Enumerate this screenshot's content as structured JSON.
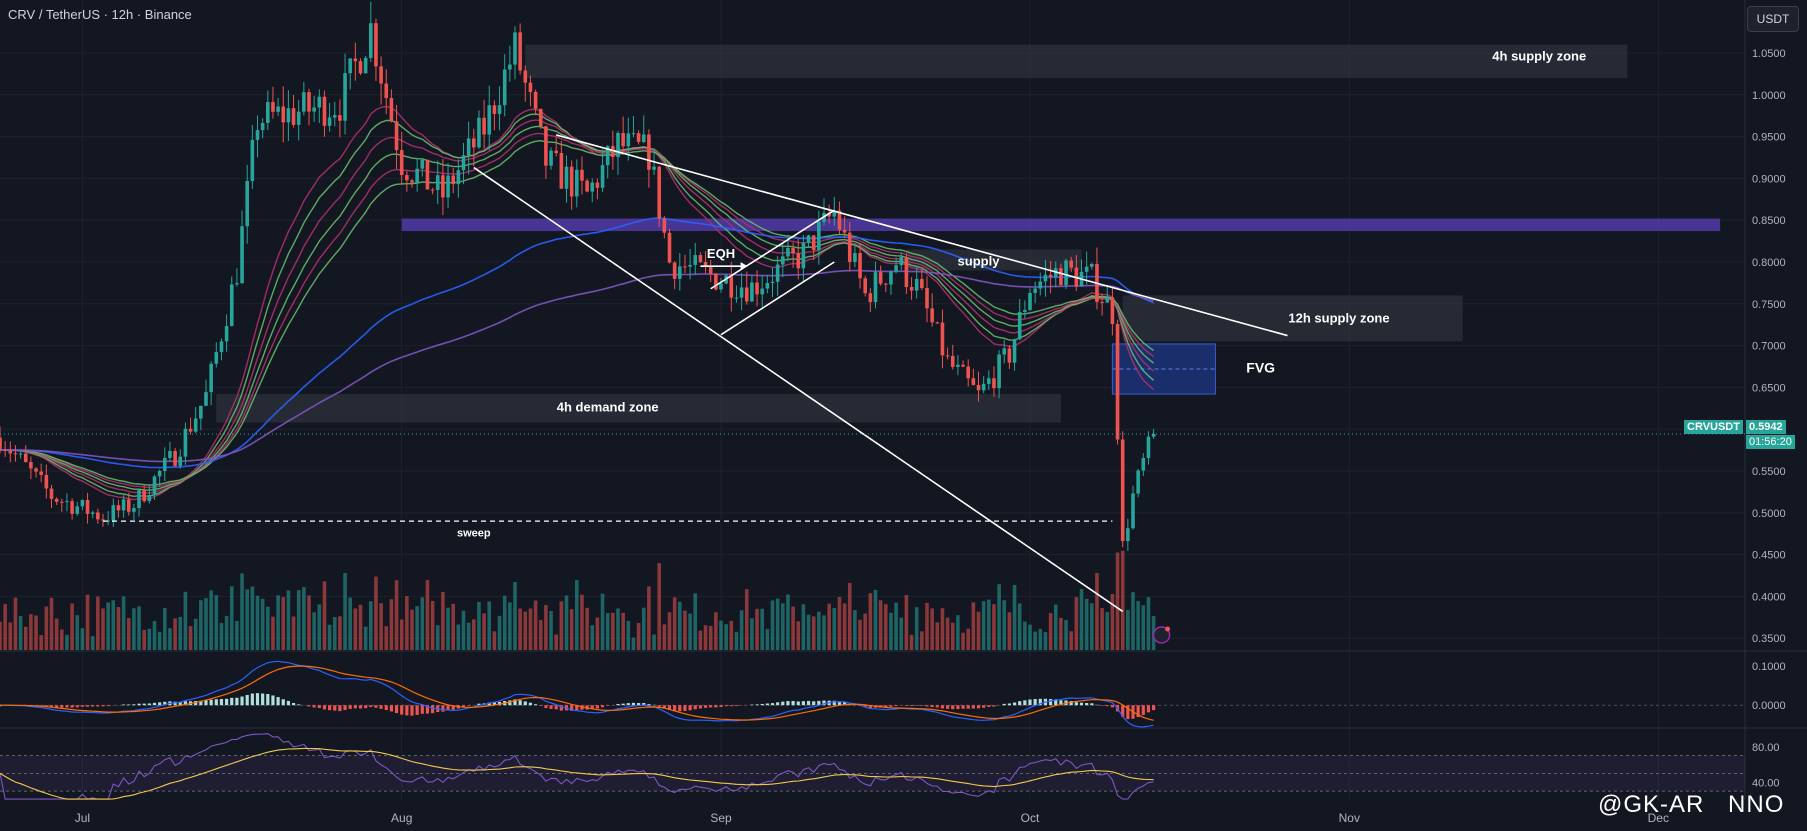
{
  "header": {
    "title": "CRV / TetherUS · 12h · Binance"
  },
  "currency_button": "USDT",
  "price_tag": {
    "symbol": "CRVUSDT",
    "price": "0.5942",
    "countdown": "01:56:20"
  },
  "watermark": {
    "brand": "@GK-AR",
    "suffix": "NNO"
  },
  "colors": {
    "background": "#131722",
    "bull": "#26a69a",
    "bear": "#ef5350",
    "grid": "#1e222d",
    "zone": "#363a45",
    "purple_zone": "#5b3fb8",
    "fvg": "#1f3a93"
  },
  "chart_data": {
    "type": "candlestick",
    "symbol": "CRV / TetherUS",
    "interval": "12h",
    "exchange": "Binance",
    "ylim": [
      0.33,
      1.09
    ],
    "y_ticks": [
      "1.0500",
      "1.0000",
      "0.9500",
      "0.9000",
      "0.8500",
      "0.8000",
      "0.7500",
      "0.7000",
      "0.6500",
      "0.6000",
      "0.5500",
      "0.5000",
      "0.4500",
      "0.4000",
      "0.3500"
    ],
    "x_ticks": [
      {
        "label": "Jul",
        "date": "2024-07-01"
      },
      {
        "label": "Aug",
        "date": "2024-08-01"
      },
      {
        "label": "Sep",
        "date": "2024-09-01"
      },
      {
        "label": "Oct",
        "date": "2024-10-01"
      },
      {
        "label": "Nov",
        "date": "2024-11-01"
      },
      {
        "label": "Dec",
        "date": "2024-12-01"
      }
    ],
    "price_path": [
      [
        "2024-06-23",
        0.59
      ],
      [
        "2024-06-28",
        0.52
      ],
      [
        "2024-07-03",
        0.495
      ],
      [
        "2024-07-06",
        0.51
      ],
      [
        "2024-07-10",
        0.57
      ],
      [
        "2024-07-13",
        0.64
      ],
      [
        "2024-07-16",
        0.79
      ],
      [
        "2024-07-18",
        0.97
      ],
      [
        "2024-07-22",
        0.98
      ],
      [
        "2024-07-26",
        0.99
      ],
      [
        "2024-07-29",
        1.08
      ],
      [
        "2024-08-01",
        0.92
      ],
      [
        "2024-08-05",
        0.88
      ],
      [
        "2024-08-09",
        0.96
      ],
      [
        "2024-08-12",
        1.055
      ],
      [
        "2024-08-15",
        0.92
      ],
      [
        "2024-08-19",
        0.88
      ],
      [
        "2024-08-22",
        0.94
      ],
      [
        "2024-08-25",
        0.93
      ],
      [
        "2024-08-27",
        0.8
      ],
      [
        "2024-09-01",
        0.78
      ],
      [
        "2024-09-04",
        0.77
      ],
      [
        "2024-09-09",
        0.81
      ],
      [
        "2024-09-12",
        0.86
      ],
      [
        "2024-09-15",
        0.76
      ],
      [
        "2024-09-18",
        0.8
      ],
      [
        "2024-09-20",
        0.77
      ],
      [
        "2024-09-23",
        0.68
      ],
      [
        "2024-09-26",
        0.64
      ],
      [
        "2024-09-29",
        0.69
      ],
      [
        "2024-10-01",
        0.77
      ],
      [
        "2024-10-04",
        0.79
      ],
      [
        "2024-10-07",
        0.78
      ],
      [
        "2024-10-09",
        0.74
      ],
      [
        "2024-10-10",
        0.46
      ],
      [
        "2024-10-11",
        0.52
      ],
      [
        "2024-10-12",
        0.56
      ],
      [
        "2024-10-13",
        0.594
      ]
    ],
    "annotations": [
      {
        "type": "zone",
        "label": "4h supply zone",
        "from": "2024-08-13",
        "to": "2024-11-28",
        "price_low": 1.02,
        "price_high": 1.06
      },
      {
        "type": "zone",
        "label": "",
        "from": "2024-08-01",
        "to": "2024-12-07",
        "price_low": 0.837,
        "price_high": 0.852,
        "color": "purple"
      },
      {
        "type": "zone",
        "label": "supply",
        "from": "2024-09-19",
        "to": "2024-10-06",
        "price_low": 0.79,
        "price_high": 0.815
      },
      {
        "type": "zone",
        "label": "12h supply zone",
        "from": "2024-10-10",
        "to": "2024-11-12",
        "price_low": 0.705,
        "price_high": 0.76
      },
      {
        "type": "zone",
        "label": "FVG",
        "from": "2024-10-09",
        "to": "2024-10-19",
        "price_low": 0.642,
        "price_high": 0.702,
        "color": "blue"
      },
      {
        "type": "zone",
        "label": "4h demand zone",
        "from": "2024-07-14",
        "to": "2024-10-04",
        "price_low": 0.608,
        "price_high": 0.642
      },
      {
        "type": "line",
        "label": "sweep",
        "from": "2024-07-03",
        "to": "2024-10-09",
        "price": 0.49,
        "dashed": true
      },
      {
        "type": "text",
        "label": "EQH",
        "date": "2024-09-01",
        "price": 0.809
      }
    ],
    "current_price": 0.5942,
    "macd": {
      "y_ticks": [
        "0.1000",
        "0.0000"
      ],
      "ylim": [
        -0.03,
        0.11
      ]
    },
    "rsi": {
      "y_ticks": [
        "80.00",
        "40.00"
      ],
      "ylim": [
        20,
        100
      ],
      "bands": [
        70,
        30
      ]
    }
  }
}
